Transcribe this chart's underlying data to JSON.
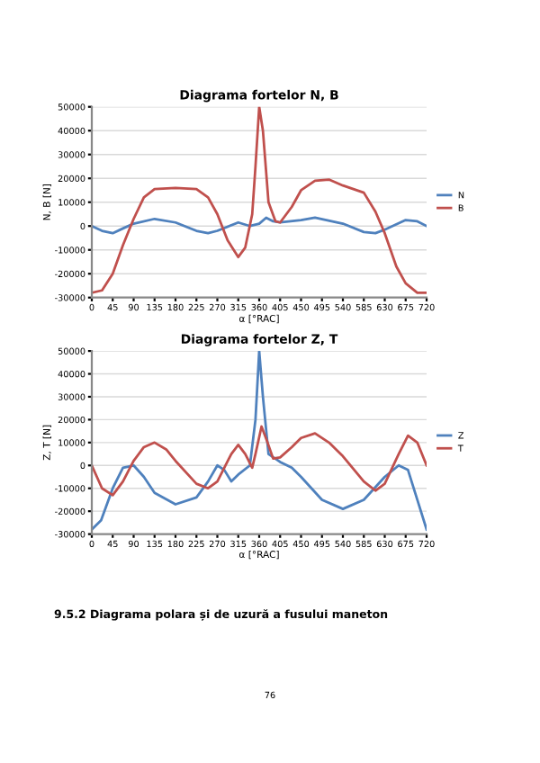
{
  "chart_data": [
    {
      "type": "line",
      "title": "Diagrama fortelor N, B",
      "xlabel": "α [°RAC]",
      "ylabel": "N, B [N]",
      "xlim": [
        0,
        720
      ],
      "xticks": [
        0,
        45,
        90,
        135,
        180,
        225,
        270,
        315,
        360,
        405,
        450,
        495,
        540,
        585,
        630,
        675,
        720
      ],
      "ylim": [
        -30000,
        50000
      ],
      "yticks": [
        -30000,
        -20000,
        -10000,
        0,
        10000,
        20000,
        30000,
        40000,
        50000
      ],
      "grid": "y",
      "legend": "right",
      "marker": "none",
      "line_style": "solid",
      "series": [
        {
          "name": "N",
          "color": "#4f81bd",
          "x": [
            0,
            22,
            45,
            67,
            90,
            135,
            180,
            225,
            250,
            270,
            315,
            340,
            360,
            375,
            390,
            405,
            450,
            480,
            540,
            585,
            610,
            630,
            675,
            700,
            720
          ],
          "values": [
            0,
            -2000,
            -3000,
            -1000,
            1000,
            3000,
            1500,
            -2000,
            -3000,
            -2000,
            1500,
            0,
            1000,
            3500,
            2000,
            1500,
            2500,
            3500,
            1000,
            -2500,
            -3000,
            -1500,
            2500,
            2000,
            0
          ]
        },
        {
          "name": "B",
          "color": "#c0504d",
          "x": [
            0,
            22,
            45,
            67,
            90,
            112,
            135,
            180,
            225,
            250,
            270,
            292,
            315,
            330,
            345,
            352,
            360,
            368,
            380,
            395,
            405,
            430,
            450,
            480,
            510,
            540,
            585,
            610,
            630,
            655,
            675,
            700,
            720
          ],
          "values": [
            -28000,
            -27000,
            -20000,
            -8000,
            3000,
            12000,
            15500,
            16000,
            15500,
            12000,
            5000,
            -6000,
            -13000,
            -9000,
            5000,
            25000,
            50000,
            40000,
            10000,
            2000,
            1500,
            8000,
            15000,
            19000,
            19500,
            17000,
            14000,
            6000,
            -3000,
            -17000,
            -24000,
            -28000,
            -28000
          ]
        }
      ]
    },
    {
      "type": "line",
      "title": "Diagrama fortelor Z, T",
      "xlabel": "α [°RAC]",
      "ylabel": "Z, T [N]",
      "xlim": [
        0,
        720
      ],
      "xticks": [
        0,
        45,
        90,
        135,
        180,
        225,
        270,
        315,
        360,
        405,
        450,
        495,
        540,
        585,
        630,
        675,
        720
      ],
      "ylim": [
        -30000,
        50000
      ],
      "yticks": [
        -30000,
        -20000,
        -10000,
        0,
        10000,
        20000,
        30000,
        40000,
        50000
      ],
      "grid": "y",
      "legend": "right",
      "marker": "none",
      "line_style": "solid",
      "annotations": [
        "9.5.2 Diagrama polara și de uzură a fusului maneton",
        "76"
      ],
      "series": [
        {
          "name": "Z",
          "color": "#4f81bd",
          "x": [
            0,
            20,
            45,
            67,
            90,
            112,
            135,
            180,
            225,
            250,
            270,
            285,
            300,
            315,
            340,
            352,
            360,
            368,
            380,
            405,
            430,
            450,
            495,
            540,
            585,
            630,
            660,
            680,
            700,
            720
          ],
          "values": [
            -28000,
            -24000,
            -10000,
            -1000,
            0,
            -5000,
            -12000,
            -17000,
            -14000,
            -7000,
            0,
            -2000,
            -7000,
            -4000,
            0,
            20000,
            50000,
            30000,
            5000,
            1500,
            -1000,
            -5000,
            -15000,
            -19000,
            -15000,
            -5000,
            0,
            -2000,
            -15000,
            -28000
          ]
        },
        {
          "name": "T",
          "color": "#c0504d",
          "x": [
            0,
            22,
            45,
            67,
            90,
            112,
            135,
            160,
            180,
            225,
            250,
            270,
            300,
            315,
            330,
            345,
            352,
            365,
            378,
            390,
            405,
            430,
            450,
            480,
            510,
            540,
            585,
            610,
            630,
            660,
            680,
            700,
            720
          ],
          "values": [
            0,
            -10000,
            -13000,
            -7000,
            2000,
            8000,
            10000,
            7000,
            2000,
            -8000,
            -10000,
            -7000,
            5000,
            9000,
            5000,
            -1000,
            5000,
            17000,
            10000,
            3000,
            3500,
            8000,
            12000,
            14000,
            10000,
            4000,
            -7000,
            -11000,
            -8000,
            5000,
            13000,
            10000,
            0
          ]
        }
      ]
    }
  ]
}
